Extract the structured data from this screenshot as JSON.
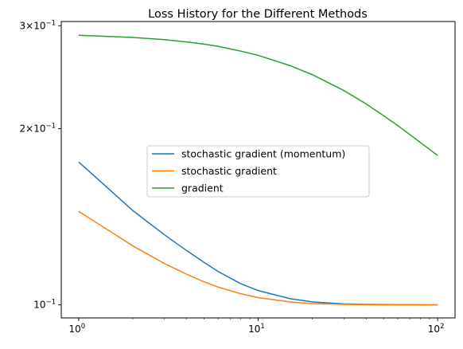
{
  "chart_data": {
    "type": "line",
    "title": "Loss History for the Different Methods",
    "xlabel": "",
    "ylabel": "",
    "x_scale": "log",
    "y_scale": "log",
    "xlim": [
      0.8,
      125
    ],
    "ylim": [
      0.095,
      0.305
    ],
    "x_ticks": [
      {
        "value": 1,
        "base": "10",
        "exp": "0"
      },
      {
        "value": 10,
        "base": "10",
        "exp": "1"
      },
      {
        "value": 100,
        "base": "10",
        "exp": "2"
      }
    ],
    "y_ticks": [
      {
        "value": 0.1,
        "mant": "",
        "base": "10",
        "exp": "−1"
      },
      {
        "value": 0.2,
        "mant": "2×",
        "base": "10",
        "exp": "−1"
      },
      {
        "value": 0.3,
        "mant": "3×",
        "base": "10",
        "exp": "−1"
      }
    ],
    "grid": false,
    "legend_position": "center",
    "series": [
      {
        "name": "stochastic gradient (momentum)",
        "color": "#1f77b4",
        "points": [
          [
            1,
            0.1755
          ],
          [
            1.5,
            0.157
          ],
          [
            2,
            0.145
          ],
          [
            3,
            0.1318
          ],
          [
            4,
            0.1238
          ],
          [
            5,
            0.1182
          ],
          [
            6,
            0.114
          ],
          [
            8,
            0.1087
          ],
          [
            10,
            0.1058
          ],
          [
            15,
            0.1025
          ],
          [
            20,
            0.1012
          ],
          [
            30,
            0.1004
          ],
          [
            40,
            0.1002
          ],
          [
            60,
            0.1001
          ],
          [
            100,
            0.1
          ]
        ]
      },
      {
        "name": "stochastic gradient",
        "color": "#ff7f0e",
        "points": [
          [
            1,
            0.1445
          ],
          [
            1.5,
            0.1335
          ],
          [
            2,
            0.1262
          ],
          [
            3,
            0.1177
          ],
          [
            4,
            0.1128
          ],
          [
            5,
            0.1095
          ],
          [
            6,
            0.1072
          ],
          [
            8,
            0.1045
          ],
          [
            10,
            0.1029
          ],
          [
            15,
            0.1012
          ],
          [
            20,
            0.1005
          ],
          [
            30,
            0.1002
          ],
          [
            50,
            0.1
          ],
          [
            100,
            0.1
          ]
        ]
      },
      {
        "name": "gradient",
        "color": "#2ca02c",
        "points": [
          [
            1,
            0.289
          ],
          [
            2,
            0.2865
          ],
          [
            3,
            0.284
          ],
          [
            4,
            0.2815
          ],
          [
            5,
            0.279
          ],
          [
            6,
            0.2765
          ],
          [
            8,
            0.2715
          ],
          [
            10,
            0.267
          ],
          [
            15,
            0.2565
          ],
          [
            20,
            0.2475
          ],
          [
            30,
            0.2325
          ],
          [
            40,
            0.2205
          ],
          [
            50,
            0.2105
          ],
          [
            60,
            0.2025
          ],
          [
            70,
            0.1955
          ],
          [
            80,
            0.1895
          ],
          [
            90,
            0.1845
          ],
          [
            100,
            0.18
          ]
        ]
      }
    ]
  }
}
